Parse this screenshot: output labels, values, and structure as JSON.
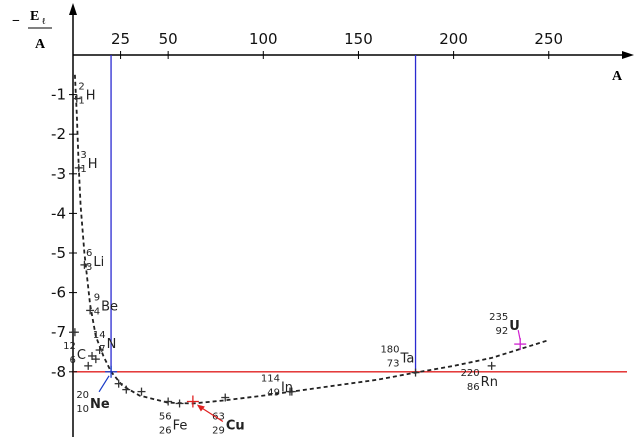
{
  "chart_data": {
    "type": "scatter",
    "x_axis": {
      "label": "A",
      "ticks": [
        25,
        50,
        100,
        150,
        200,
        250
      ],
      "range": [
        0,
        270
      ]
    },
    "y_axis": {
      "label_prefix": "−",
      "label_numerator": "E",
      "label_subscript": "ℓ",
      "label_denominator": "A",
      "ticks": [
        -1,
        -2,
        -3,
        -4,
        -5,
        -6,
        -7,
        -8
      ],
      "range": [
        -9.0,
        0
      ]
    },
    "nuclides": [
      {
        "mass": "2",
        "atomic": "1",
        "symbol": "H",
        "A": 2,
        "value": -1.1
      },
      {
        "mass": "3",
        "atomic": "1",
        "symbol": "H",
        "A": 3,
        "value": -2.85
      },
      {
        "mass": "6",
        "atomic": "3",
        "symbol": "Li",
        "A": 6,
        "value": -5.3
      },
      {
        "mass": "9",
        "atomic": "4",
        "symbol": "Be",
        "A": 9,
        "value": -6.45
      },
      {
        "mass": "14",
        "atomic": "7",
        "symbol": "N",
        "A": 14,
        "value": -7.45
      },
      {
        "mass": "12",
        "atomic": "6",
        "symbol": "C",
        "A": 12,
        "value": -7.68
      },
      {
        "mass": "20",
        "atomic": "10",
        "symbol": "Ne",
        "A": 20,
        "value": -8.0
      },
      {
        "mass": "56",
        "atomic": "26",
        "symbol": "Fe",
        "A": 56,
        "value": -8.8
      },
      {
        "mass": "63",
        "atomic": "29",
        "symbol": "Cu",
        "A": 63,
        "value": -8.75
      },
      {
        "mass": "114",
        "atomic": "49",
        "symbol": "In",
        "A": 114,
        "value": -8.5
      },
      {
        "mass": "180",
        "atomic": "73",
        "symbol": "Ta",
        "A": 180,
        "value": -8.02
      },
      {
        "mass": "220",
        "atomic": "86",
        "symbol": "Rn",
        "A": 220,
        "value": -7.85
      },
      {
        "mass": "235",
        "atomic": "92",
        "symbol": "U",
        "A": 235,
        "value": -7.3
      }
    ],
    "extra_points": [
      {
        "A": 1,
        "value": -7.0
      },
      {
        "A": 8,
        "value": -7.85
      },
      {
        "A": 10,
        "value": -7.6
      },
      {
        "A": 24,
        "value": -8.3
      },
      {
        "A": 28,
        "value": -8.45
      },
      {
        "A": 36,
        "value": -8.5
      },
      {
        "A": 50,
        "value": -8.75
      },
      {
        "A": 80,
        "value": -8.65
      },
      {
        "A": 115,
        "value": -8.5
      }
    ],
    "curve": [
      {
        "A": 1,
        "value": -0.5
      },
      {
        "A": 2,
        "value": -1.5
      },
      {
        "A": 3,
        "value": -2.8
      },
      {
        "A": 4,
        "value": -3.8
      },
      {
        "A": 6,
        "value": -5.0
      },
      {
        "A": 9,
        "value": -6.3
      },
      {
        "A": 12,
        "value": -7.1
      },
      {
        "A": 16,
        "value": -7.6
      },
      {
        "A": 20,
        "value": -8.0
      },
      {
        "A": 26,
        "value": -8.35
      },
      {
        "A": 35,
        "value": -8.6
      },
      {
        "A": 50,
        "value": -8.78
      },
      {
        "A": 63,
        "value": -8.8
      },
      {
        "A": 80,
        "value": -8.72
      },
      {
        "A": 100,
        "value": -8.6
      },
      {
        "A": 130,
        "value": -8.4
      },
      {
        "A": 160,
        "value": -8.2
      },
      {
        "A": 180,
        "value": -8.02
      },
      {
        "A": 200,
        "value": -7.85
      },
      {
        "A": 220,
        "value": -7.65
      },
      {
        "A": 250,
        "value": -7.2
      }
    ],
    "reference_lines": {
      "vertical_A": [
        20,
        180
      ],
      "horizontal_value": -8.0
    },
    "colors": {
      "ne": "#1a3cc8",
      "cu": "#e02020",
      "u": "#d020d0",
      "vertical": "#2a2ad0",
      "horizontal": "#e02020"
    }
  }
}
